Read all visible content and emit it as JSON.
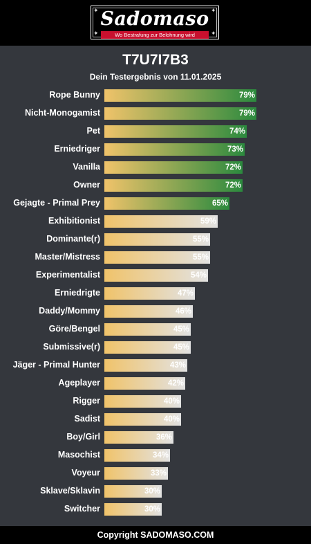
{
  "header": {
    "logo_text": "Sadomaso",
    "tagline": "Wo Bestrafung zur Belohnung wird"
  },
  "title": "T7U7I7B3",
  "subtitle": "Dein Testergebnis von 11.01.2025",
  "colors": {
    "bar_start": "#f0c36a",
    "bar_high_end": "#2b8a3e",
    "bar_low_end": "#e2e2e2",
    "background": "#34373d",
    "brand_red": "#c8102e"
  },
  "results": [
    {
      "label": "Rope Bunny",
      "percent": 79,
      "display": "79%",
      "tier": "high"
    },
    {
      "label": "Nicht-Monogamist",
      "percent": 79,
      "display": "79%",
      "tier": "high"
    },
    {
      "label": "Pet",
      "percent": 74,
      "display": "74%",
      "tier": "high"
    },
    {
      "label": "Erniedriger",
      "percent": 73,
      "display": "73%",
      "tier": "high"
    },
    {
      "label": "Vanilla",
      "percent": 72,
      "display": "72%",
      "tier": "high"
    },
    {
      "label": "Owner",
      "percent": 72,
      "display": "72%",
      "tier": "high"
    },
    {
      "label": "Gejagte - Primal Prey",
      "percent": 65,
      "display": "65%",
      "tier": "high"
    },
    {
      "label": "Exhibitionist",
      "percent": 59,
      "display": "59%",
      "tier": "low"
    },
    {
      "label": "Dominante(r)",
      "percent": 55,
      "display": "55%",
      "tier": "low"
    },
    {
      "label": "Master/Mistress",
      "percent": 55,
      "display": "55%",
      "tier": "low"
    },
    {
      "label": "Experimentalist",
      "percent": 54,
      "display": "54%",
      "tier": "low"
    },
    {
      "label": "Erniedrigte",
      "percent": 47,
      "display": "47%",
      "tier": "low"
    },
    {
      "label": "Daddy/Mommy",
      "percent": 46,
      "display": "46%",
      "tier": "low"
    },
    {
      "label": "Göre/Bengel",
      "percent": 45,
      "display": "45%",
      "tier": "low"
    },
    {
      "label": "Submissive(r)",
      "percent": 45,
      "display": "45%",
      "tier": "low"
    },
    {
      "label": "Jäger - Primal Hunter",
      "percent": 43,
      "display": "43%",
      "tier": "low"
    },
    {
      "label": "Ageplayer",
      "percent": 42,
      "display": "42%",
      "tier": "low"
    },
    {
      "label": "Rigger",
      "percent": 40,
      "display": "40%",
      "tier": "low"
    },
    {
      "label": "Sadist",
      "percent": 40,
      "display": "40%",
      "tier": "low"
    },
    {
      "label": "Boy/Girl",
      "percent": 36,
      "display": "36%",
      "tier": "low"
    },
    {
      "label": "Masochist",
      "percent": 34,
      "display": "34%",
      "tier": "low"
    },
    {
      "label": "Voyeur",
      "percent": 33,
      "display": "33%",
      "tier": "low"
    },
    {
      "label": "Sklave/Sklavin",
      "percent": 30,
      "display": "30%",
      "tier": "low"
    },
    {
      "label": "Switcher",
      "percent": 30,
      "display": "30%",
      "tier": "low"
    }
  ],
  "footer": {
    "copyright": "Copyright SADOMASO.COM"
  }
}
